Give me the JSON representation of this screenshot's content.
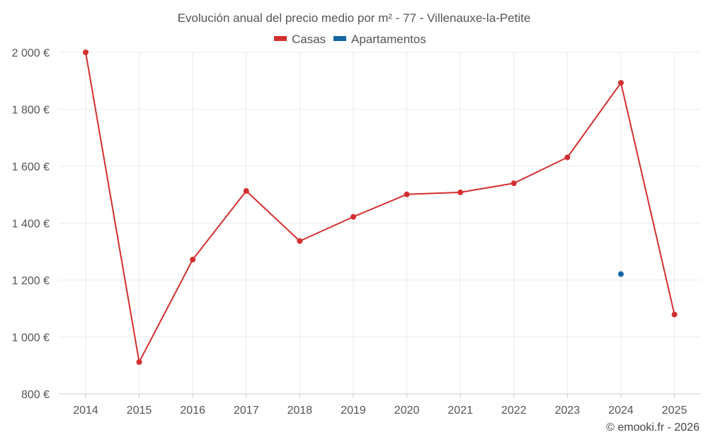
{
  "chart_data": {
    "type": "line",
    "title": "Evolución anual del precio medio por m² - 77 - Villenauxe-la-Petite",
    "categories": [
      "2014",
      "2015",
      "2016",
      "2017",
      "2018",
      "2019",
      "2020",
      "2021",
      "2022",
      "2023",
      "2024",
      "2025"
    ],
    "series": [
      {
        "name": "Casas",
        "color": "#d32f2f",
        "values": [
          2000,
          912,
          1272,
          1513,
          1337,
          1422,
          1501,
          1508,
          1540,
          1631,
          1893,
          1079
        ]
      },
      {
        "name": "Apartamentos",
        "color": "#1565a0",
        "values": [
          null,
          null,
          null,
          null,
          null,
          null,
          null,
          null,
          null,
          null,
          1221,
          null
        ]
      }
    ],
    "y_ticks": [
      800,
      1000,
      1200,
      1400,
      1600,
      1800,
      2000
    ],
    "y_tick_labels": [
      "800 €",
      "1 000 €",
      "1 200 €",
      "1 400 €",
      "1 600 €",
      "1 800 €",
      "2 000 €"
    ],
    "ylim": [
      800,
      2000
    ],
    "xlabel": "",
    "ylabel": "",
    "grid": true,
    "legend_position": "top-center"
  },
  "credit": "© emooki.fr - 2026"
}
